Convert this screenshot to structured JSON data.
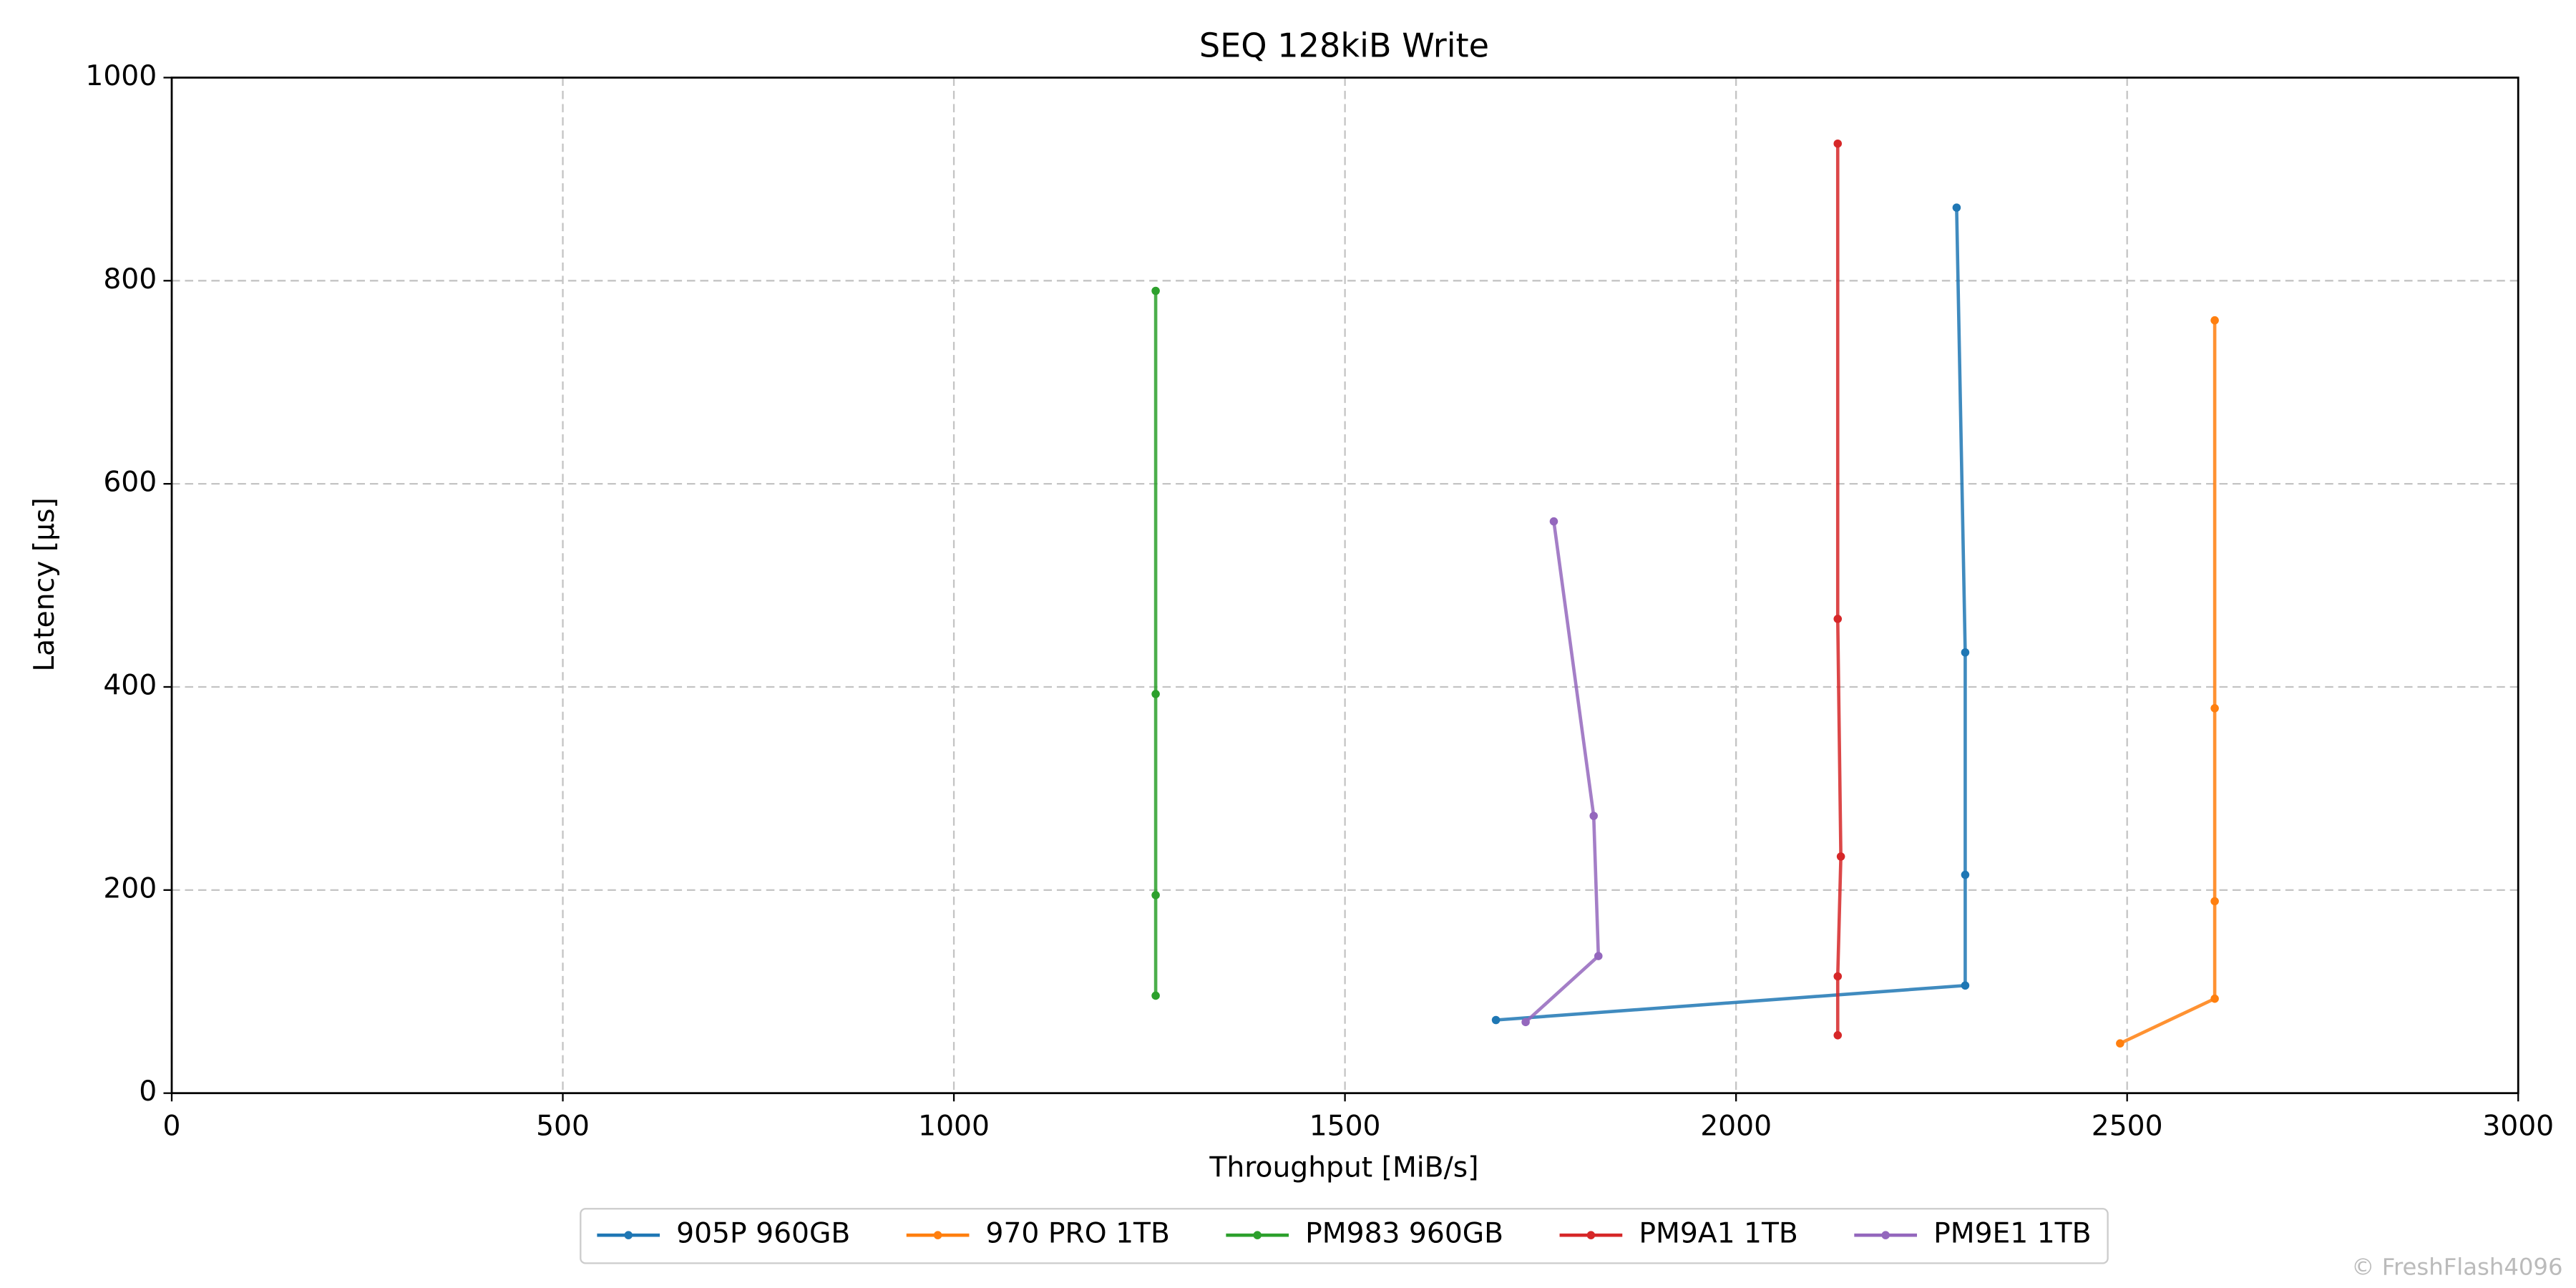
{
  "chart_data": {
    "type": "line",
    "title": "SEQ 128kiB Write",
    "xlabel": "Throughput [MiB/s]",
    "ylabel": "Latency [µs]",
    "watermark": "© FreshFlash4096",
    "xlim": [
      0,
      3000
    ],
    "xticks": [
      0,
      500,
      1000,
      1500,
      2000,
      2500,
      3000
    ],
    "ylim": [
      0,
      1000
    ],
    "yticks": [
      0,
      200,
      400,
      600,
      800,
      1000
    ],
    "grid": true,
    "legend": "lower center",
    "series": [
      {
        "name": "905P 960GB",
        "color": "#1f77b4",
        "x": [
          1693,
          2293,
          2293,
          2293,
          2282
        ],
        "values": [
          72,
          106,
          215,
          434,
          872
        ]
      },
      {
        "name": "970 PRO 1TB",
        "color": "#ff7f0e",
        "x": [
          2491,
          2612,
          2612,
          2612,
          2612
        ],
        "values": [
          49,
          93,
          189,
          379,
          761
        ]
      },
      {
        "name": "PM983 960GB",
        "color": "#2ca02c",
        "x": [
          1258,
          1258,
          1258,
          1258
        ],
        "values": [
          96,
          195,
          393,
          790
        ]
      },
      {
        "name": "PM9A1 1TB",
        "color": "#d62728",
        "x": [
          2130,
          2130,
          2134,
          2130,
          2130
        ],
        "values": [
          57,
          115,
          233,
          467,
          935
        ]
      },
      {
        "name": "PM9E1 1TB",
        "color": "#9467bd",
        "x": [
          1731,
          1824,
          1818,
          1767
        ],
        "values": [
          70,
          135,
          273,
          563
        ]
      }
    ]
  }
}
